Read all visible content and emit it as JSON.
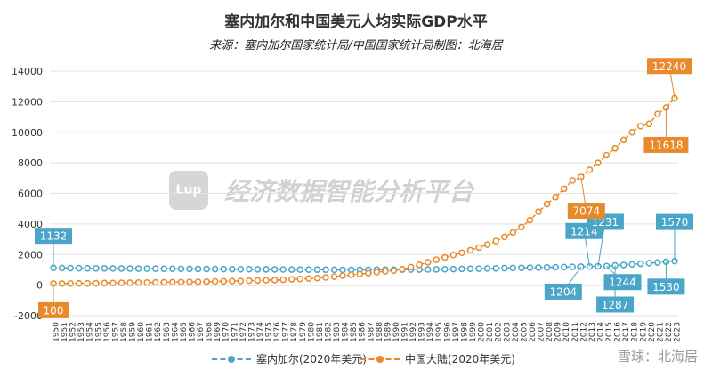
{
  "chart_data": {
    "type": "line",
    "title": "塞内加尔和中国美元人均实际GDP水平",
    "subtitle": "来源：塞内加尔国家统计局/中国国家统计局制图：北海居",
    "xlabel": "",
    "ylabel": "",
    "ylim": [
      -2000,
      14000
    ],
    "yticks": [
      "-2000",
      "0",
      "2000",
      "4000",
      "6000",
      "8000",
      "10000",
      "12000",
      "14000"
    ],
    "grid": true,
    "legend_position": "bottom",
    "x": [
      1950,
      1951,
      1952,
      1953,
      1954,
      1955,
      1956,
      1957,
      1958,
      1959,
      1960,
      1961,
      1962,
      1963,
      1964,
      1965,
      1966,
      1967,
      1968,
      1969,
      1970,
      1971,
      1972,
      1973,
      1974,
      1975,
      1976,
      1977,
      1978,
      1979,
      1980,
      1981,
      1982,
      1983,
      1984,
      1985,
      1986,
      1987,
      1988,
      1989,
      1990,
      1991,
      1992,
      1993,
      1994,
      1995,
      1996,
      1997,
      1998,
      1999,
      2000,
      2001,
      2002,
      2003,
      2004,
      2005,
      2006,
      2007,
      2008,
      2009,
      2010,
      2011,
      2012,
      2013,
      2014,
      2015,
      2016,
      2017,
      2018,
      2019,
      2020,
      2021,
      2022,
      2023
    ],
    "xtick_labels": [
      "1950",
      "1951",
      "1952",
      "1953",
      "1954",
      "1955",
      "1956",
      "1957",
      "1958",
      "1959",
      "1960",
      "1961",
      "1962",
      "1963",
      "1964",
      "1965",
      "1966",
      "1967",
      "1968",
      "1969",
      "1970",
      "1971",
      "1972",
      "1973",
      "1974",
      "1975",
      "1976",
      "1977",
      "1978",
      "1979",
      "1980",
      "1981",
      "1982",
      "1983",
      "1984",
      "1985",
      "1986",
      "1987",
      "1988",
      "1989",
      "1990",
      "1991",
      "1992",
      "1993",
      "1994",
      "1995",
      "1996",
      "1997",
      "1998",
      "1999",
      "2000",
      "2001",
      "2002",
      "2003",
      "2004",
      "2005",
      "2006",
      "2007",
      "2008",
      "2009",
      "2010",
      "2011",
      "2012",
      "2013",
      "2014",
      "2015",
      "2016",
      "2017",
      "2018",
      "2019",
      "2020",
      "2021",
      "2022",
      "2023"
    ],
    "series": [
      {
        "name": "塞内加尔(2020年美元)",
        "color": "#4aa5c8",
        "values": [
          1132,
          1120,
          1110,
          1105,
          1100,
          1098,
          1095,
          1090,
          1088,
          1085,
          1080,
          1078,
          1075,
          1070,
          1068,
          1065,
          1060,
          1058,
          1055,
          1050,
          1048,
          1045,
          1040,
          1038,
          1035,
          1030,
          1028,
          1025,
          1020,
          1018,
          1015,
          1010,
          1008,
          1005,
          1000,
          1000,
          1002,
          1005,
          1008,
          1010,
          1012,
          1015,
          1018,
          1020,
          1025,
          1030,
          1040,
          1050,
          1060,
          1070,
          1080,
          1090,
          1100,
          1110,
          1120,
          1130,
          1140,
          1150,
          1160,
          1170,
          1180,
          1190,
          1204,
          1214,
          1231,
          1244,
          1287,
          1320,
          1360,
          1400,
          1440,
          1480,
          1530,
          1570
        ]
      },
      {
        "name": "中国大陆(2020年美元)",
        "color": "#e8892b",
        "values": [
          100,
          105,
          110,
          115,
          120,
          125,
          135,
          140,
          150,
          160,
          165,
          170,
          175,
          180,
          190,
          200,
          210,
          220,
          230,
          240,
          250,
          260,
          270,
          290,
          300,
          320,
          330,
          350,
          380,
          400,
          430,
          460,
          500,
          550,
          620,
          680,
          720,
          780,
          850,
          900,
          950,
          1040,
          1180,
          1330,
          1500,
          1660,
          1810,
          1970,
          2120,
          2280,
          2460,
          2650,
          2880,
          3150,
          3450,
          3800,
          4250,
          4800,
          5300,
          5750,
          6300,
          6850,
          7074,
          7550,
          8000,
          8500,
          8950,
          9500,
          10000,
          10400,
          10550,
          11200,
          11618,
          12240
        ]
      }
    ],
    "annotations": [
      {
        "text": "1132",
        "x": 1950,
        "y": 1132,
        "series": 0
      },
      {
        "text": "1214",
        "x": 2013,
        "y": 1214,
        "series": 0
      },
      {
        "text": "1231",
        "x": 2014,
        "y": 1231,
        "series": 0
      },
      {
        "text": "1204",
        "x": 2012,
        "y": 1204,
        "series": 0
      },
      {
        "text": "1244",
        "x": 2015,
        "y": 1244,
        "series": 0
      },
      {
        "text": "1287",
        "x": 2016,
        "y": 1287,
        "series": 0
      },
      {
        "text": "1570",
        "x": 2023,
        "y": 1570,
        "series": 0
      },
      {
        "text": "1530",
        "x": 2022,
        "y": 1530,
        "series": 0
      },
      {
        "text": "100",
        "x": 1950,
        "y": 100,
        "series": 1
      },
      {
        "text": "7074",
        "x": 2012,
        "y": 7074,
        "series": 1
      },
      {
        "text": "11618",
        "x": 2022,
        "y": 11618,
        "series": 1
      },
      {
        "text": "12240",
        "x": 2023,
        "y": 12240,
        "series": 1
      }
    ]
  },
  "watermark": {
    "logo": "Lup",
    "text": "经济数据智能分析平台"
  },
  "credit": "雪球：北海居"
}
